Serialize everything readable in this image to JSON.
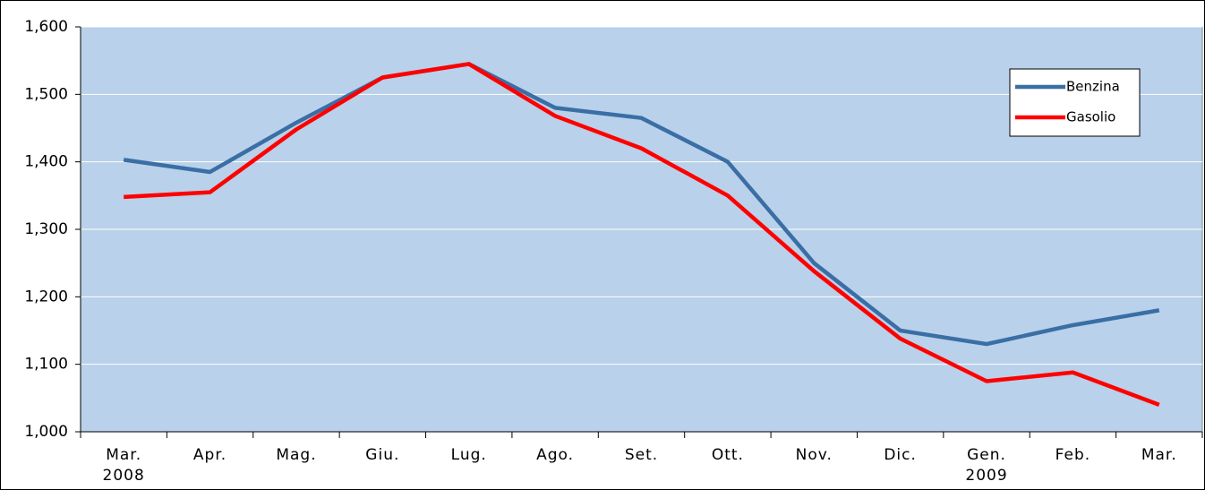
{
  "chart_data": {
    "type": "line",
    "categories": [
      "Mar.\n2008",
      "Apr.",
      "Mag.",
      "Giu.",
      "Lug.",
      "Ago.",
      "Set.",
      "Ott.",
      "Nov.",
      "Dic.",
      "Gen.\n2009",
      "Feb.",
      "Mar."
    ],
    "series": [
      {
        "name": "Benzina",
        "color": "#3a6ea5",
        "values": [
          1403,
          1385,
          1458,
          1525,
          1545,
          1480,
          1465,
          1400,
          1250,
          1150,
          1130,
          1158,
          1180
        ]
      },
      {
        "name": "Gasolio",
        "color": "#ff0000",
        "values": [
          1348,
          1355,
          1448,
          1525,
          1545,
          1468,
          1420,
          1350,
          1238,
          1138,
          1075,
          1088,
          1040
        ]
      }
    ],
    "ylim": [
      1000,
      1600
    ],
    "yticks": [
      {
        "value": 1000,
        "label": "1,000"
      },
      {
        "value": 1100,
        "label": "1,100"
      },
      {
        "value": 1200,
        "label": "1,200"
      },
      {
        "value": 1300,
        "label": "1,300"
      },
      {
        "value": 1400,
        "label": "1,400"
      },
      {
        "value": 1500,
        "label": "1,500"
      },
      {
        "value": 1600,
        "label": "1,600"
      }
    ],
    "grid": true,
    "legend": "upper right"
  }
}
